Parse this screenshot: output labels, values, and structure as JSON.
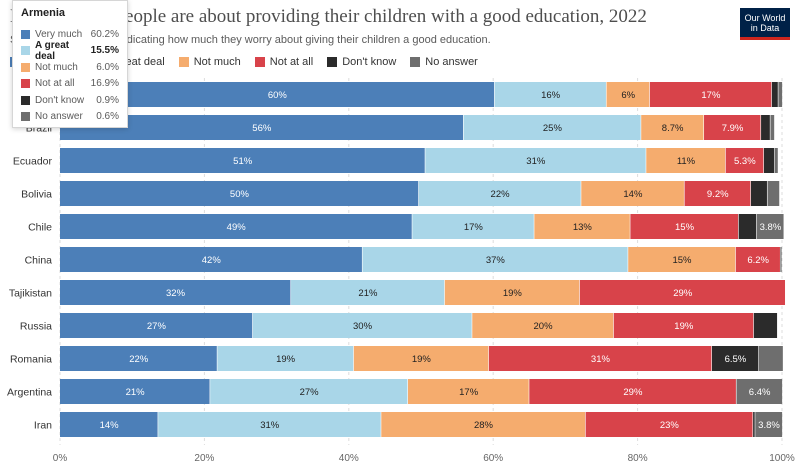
{
  "title": "How worried people are about providing their children with a good education, 2022",
  "subtitle": "Share of respondents indicating how much they worry about giving their children a good education.",
  "logo": {
    "line1": "Our World",
    "line2": "in Data"
  },
  "colors": {
    "very_much": "#4c7fb8",
    "great_deal": "#a9d6e8",
    "not_much": "#f5ac6e",
    "not_at_all": "#d8434a",
    "dont_know": "#2b2b2b",
    "no_answer": "#6e6e6e"
  },
  "chart_data": {
    "type": "bar",
    "orientation": "horizontal",
    "stacked": true,
    "categories": [
      "Armenia",
      "Brazil",
      "Ecuador",
      "Bolivia",
      "Chile",
      "China",
      "Tajikistan",
      "Russia",
      "Romania",
      "Argentina",
      "Iran"
    ],
    "series": [
      {
        "name": "Very much",
        "key": "very_much",
        "labels": [
          "60%",
          "56%",
          "51%",
          "50%",
          "49%",
          "42%",
          "32%",
          "27%",
          "22%",
          "21%",
          "14%"
        ],
        "values": [
          60.2,
          55.9,
          50.6,
          49.7,
          48.8,
          41.9,
          32.0,
          26.7,
          21.8,
          20.8,
          13.6
        ]
      },
      {
        "name": "A great deal",
        "key": "great_deal",
        "labels": [
          "16%",
          "25%",
          "31%",
          "22%",
          "17%",
          "37%",
          "21%",
          "30%",
          "19%",
          "27%",
          "31%"
        ],
        "values": [
          15.5,
          24.6,
          30.6,
          22.5,
          16.9,
          36.8,
          21.3,
          30.4,
          18.9,
          27.4,
          30.9
        ]
      },
      {
        "name": "Not much",
        "key": "not_much",
        "labels": [
          "6%",
          "8.7%",
          "11%",
          "14%",
          "13%",
          "15%",
          "19%",
          "20%",
          "19%",
          "17%",
          "28%"
        ],
        "values": [
          6.0,
          8.7,
          11.0,
          14.3,
          13.3,
          14.9,
          18.7,
          19.6,
          18.7,
          16.8,
          28.3
        ]
      },
      {
        "name": "Not at all",
        "key": "not_at_all",
        "labels": [
          "17%",
          "7.9%",
          "5.3%",
          "9.2%",
          "15%",
          "6.2%",
          "29%",
          "19%",
          "31%",
          "29%",
          "23%"
        ],
        "values": [
          16.9,
          7.9,
          5.3,
          9.2,
          15.0,
          6.2,
          28.5,
          19.4,
          30.9,
          28.7,
          23.2
        ]
      },
      {
        "name": "Don't know",
        "key": "dont_know",
        "labels": [
          "",
          "",
          "",
          "",
          "",
          "",
          "",
          "",
          "6.5%",
          "",
          ""
        ],
        "values": [
          0.9,
          1.3,
          1.5,
          2.3,
          2.5,
          0.2,
          0.0,
          3.3,
          6.5,
          0.0,
          0.3
        ]
      },
      {
        "name": "No answer",
        "key": "no_answer",
        "labels": [
          "",
          "",
          "",
          "",
          "3.8%",
          "",
          "",
          "",
          "",
          "6.4%",
          "3.8%"
        ],
        "values": [
          0.6,
          0.6,
          0.5,
          1.7,
          3.8,
          0.0,
          0.0,
          0.0,
          3.4,
          6.4,
          3.8
        ]
      }
    ],
    "xlim": [
      0,
      100
    ],
    "xticks": [
      "0%",
      "20%",
      "40%",
      "60%",
      "80%",
      "100%"
    ],
    "xtick_values": [
      0,
      20,
      40,
      60,
      80,
      100
    ],
    "grid": true,
    "legend_position": "top"
  },
  "tooltip": {
    "title": "Armenia",
    "highlighted": "A great deal",
    "rows": [
      {
        "name": "Very much",
        "key": "very_much",
        "value": "60.2%"
      },
      {
        "name": "A great deal",
        "key": "great_deal",
        "value": "15.5%"
      },
      {
        "name": "Not much",
        "key": "not_much",
        "value": "6.0%"
      },
      {
        "name": "Not at all",
        "key": "not_at_all",
        "value": "16.9%"
      },
      {
        "name": "Don't know",
        "key": "dont_know",
        "value": "0.9%"
      },
      {
        "name": "No answer",
        "key": "no_answer",
        "value": "0.6%"
      }
    ]
  }
}
